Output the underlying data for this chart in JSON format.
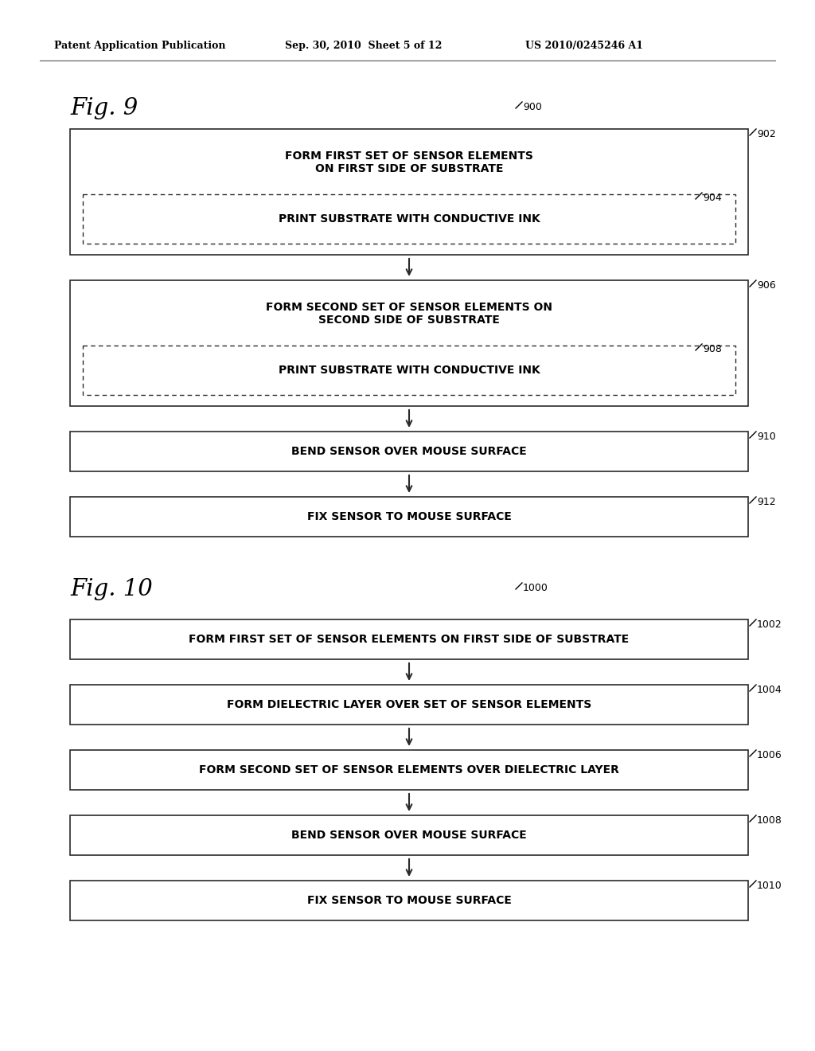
{
  "bg_color": "#ffffff",
  "header_left": "Patent Application Publication",
  "header_mid": "Sep. 30, 2010  Sheet 5 of 12",
  "header_right": "US 2010/0245246 A1",
  "fig9_label": "Fig. 9",
  "fig10_label": "Fig. 10",
  "fig9_boxes": [
    {
      "label": "902",
      "outer_text": "FORM FIRST SET OF SENSOR ELEMENTS\nON FIRST SIDE OF SUBSTRATE",
      "has_inner": true,
      "inner_label": "904",
      "inner_text": "PRINT SUBSTRATE WITH CONDUCTIVE INK"
    },
    {
      "label": "906",
      "outer_text": "FORM SECOND SET OF SENSOR ELEMENTS ON\nSECOND SIDE OF SUBSTRATE",
      "has_inner": true,
      "inner_label": "908",
      "inner_text": "PRINT SUBSTRATE WITH CONDUCTIVE INK"
    },
    {
      "label": "910",
      "outer_text": "BEND SENSOR OVER MOUSE SURFACE",
      "has_inner": false,
      "inner_label": "",
      "inner_text": ""
    },
    {
      "label": "912",
      "outer_text": "FIX SENSOR TO MOUSE SURFACE",
      "has_inner": false,
      "inner_label": "",
      "inner_text": ""
    }
  ],
  "fig10_boxes": [
    {
      "label": "1002",
      "text": "FORM FIRST SET OF SENSOR ELEMENTS ON FIRST SIDE OF SUBSTRATE"
    },
    {
      "label": "1004",
      "text": "FORM DIELECTRIC LAYER OVER SET OF SENSOR ELEMENTS"
    },
    {
      "label": "1006",
      "text": "FORM SECOND SET OF SENSOR ELEMENTS OVER DIELECTRIC LAYER"
    },
    {
      "label": "1008",
      "text": "BEND SENSOR OVER MOUSE SURFACE"
    },
    {
      "label": "1010",
      "text": "FIX SENSOR TO MOUSE SURFACE"
    }
  ]
}
